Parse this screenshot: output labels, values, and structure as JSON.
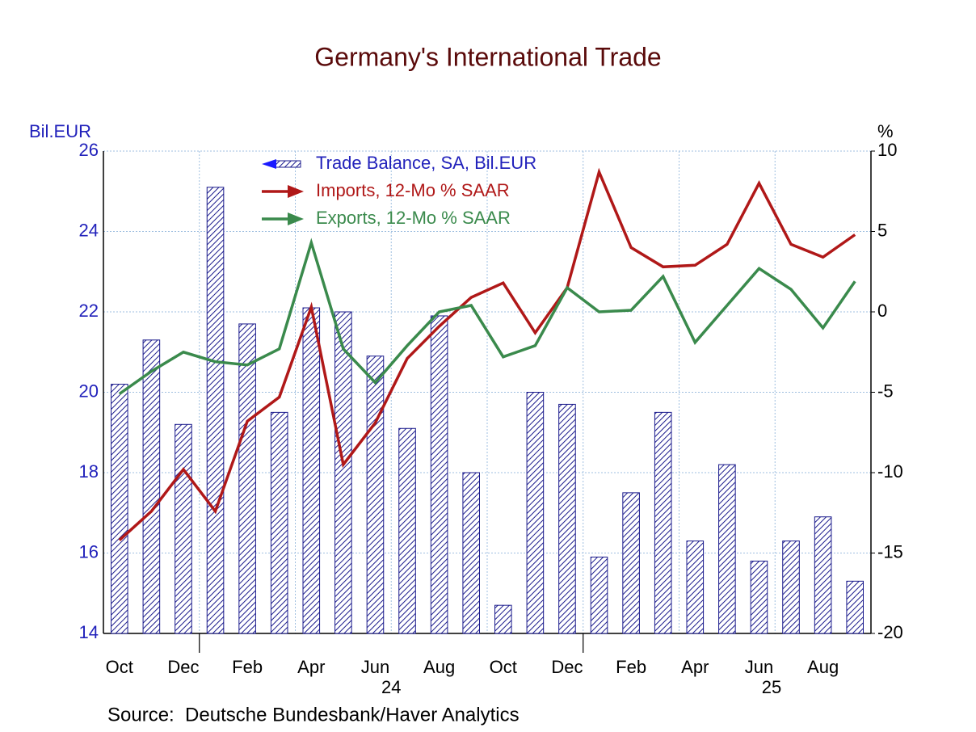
{
  "chart_data": {
    "type": "bar",
    "title": "Germany's International Trade",
    "ylabel": "Bil.EUR",
    "y2label": "%",
    "source": "Source:  Deutsche Bundesbank/Haver Analytics",
    "categories": [
      "Oct",
      null,
      "Dec",
      null,
      "Feb",
      null,
      "Apr",
      null,
      "Jun",
      null,
      "Aug",
      null,
      "Oct",
      null,
      "Dec",
      null,
      "Feb",
      null,
      "Apr",
      null,
      "Jun",
      null,
      "Aug",
      null
    ],
    "year_labels": [
      "24",
      "25"
    ],
    "ylim": [
      14,
      26
    ],
    "yticks": [
      14,
      16,
      18,
      20,
      22,
      24,
      26
    ],
    "y2lim": [
      -20,
      10
    ],
    "y2ticks": [
      -20,
      -15,
      -10,
      -5,
      0,
      5,
      10
    ],
    "grid": true,
    "series": [
      {
        "name": "Trade Balance, SA, Bil.EUR",
        "type": "bar",
        "color": "#1a1a8c",
        "values": [
          20.2,
          21.3,
          19.2,
          25.1,
          21.7,
          19.5,
          22.1,
          22.0,
          20.9,
          19.1,
          21.9,
          18.0,
          14.7,
          20.0,
          19.7,
          15.9,
          17.5,
          19.5,
          16.3,
          18.2,
          15.8,
          16.3,
          16.9,
          15.3
        ]
      },
      {
        "name": "Imports, 12-Mo % SAAR",
        "type": "line",
        "axis": "y2",
        "color": "#b01818",
        "values": [
          -14.2,
          -12.4,
          -9.8,
          -12.4,
          -6.8,
          -5.3,
          0.3,
          -9.5,
          -6.9,
          -2.9,
          -0.9,
          0.9,
          1.8,
          -1.3,
          1.5,
          8.7,
          4.0,
          2.8,
          2.9,
          4.2,
          8.0,
          4.2,
          3.4,
          4.8
        ]
      },
      {
        "name": "Exports, 12-Mo % SAAR",
        "type": "line",
        "axis": "y2",
        "color": "#3a8a4c",
        "values": [
          -5.1,
          -3.7,
          -2.5,
          -3.1,
          -3.3,
          -2.3,
          4.3,
          -2.3,
          -4.4,
          -2.1,
          0.0,
          0.4,
          -2.8,
          -2.1,
          1.5,
          0.0,
          0.1,
          2.2,
          -1.9,
          0.4,
          2.7,
          1.4,
          -1.0,
          1.9
        ]
      }
    ]
  }
}
